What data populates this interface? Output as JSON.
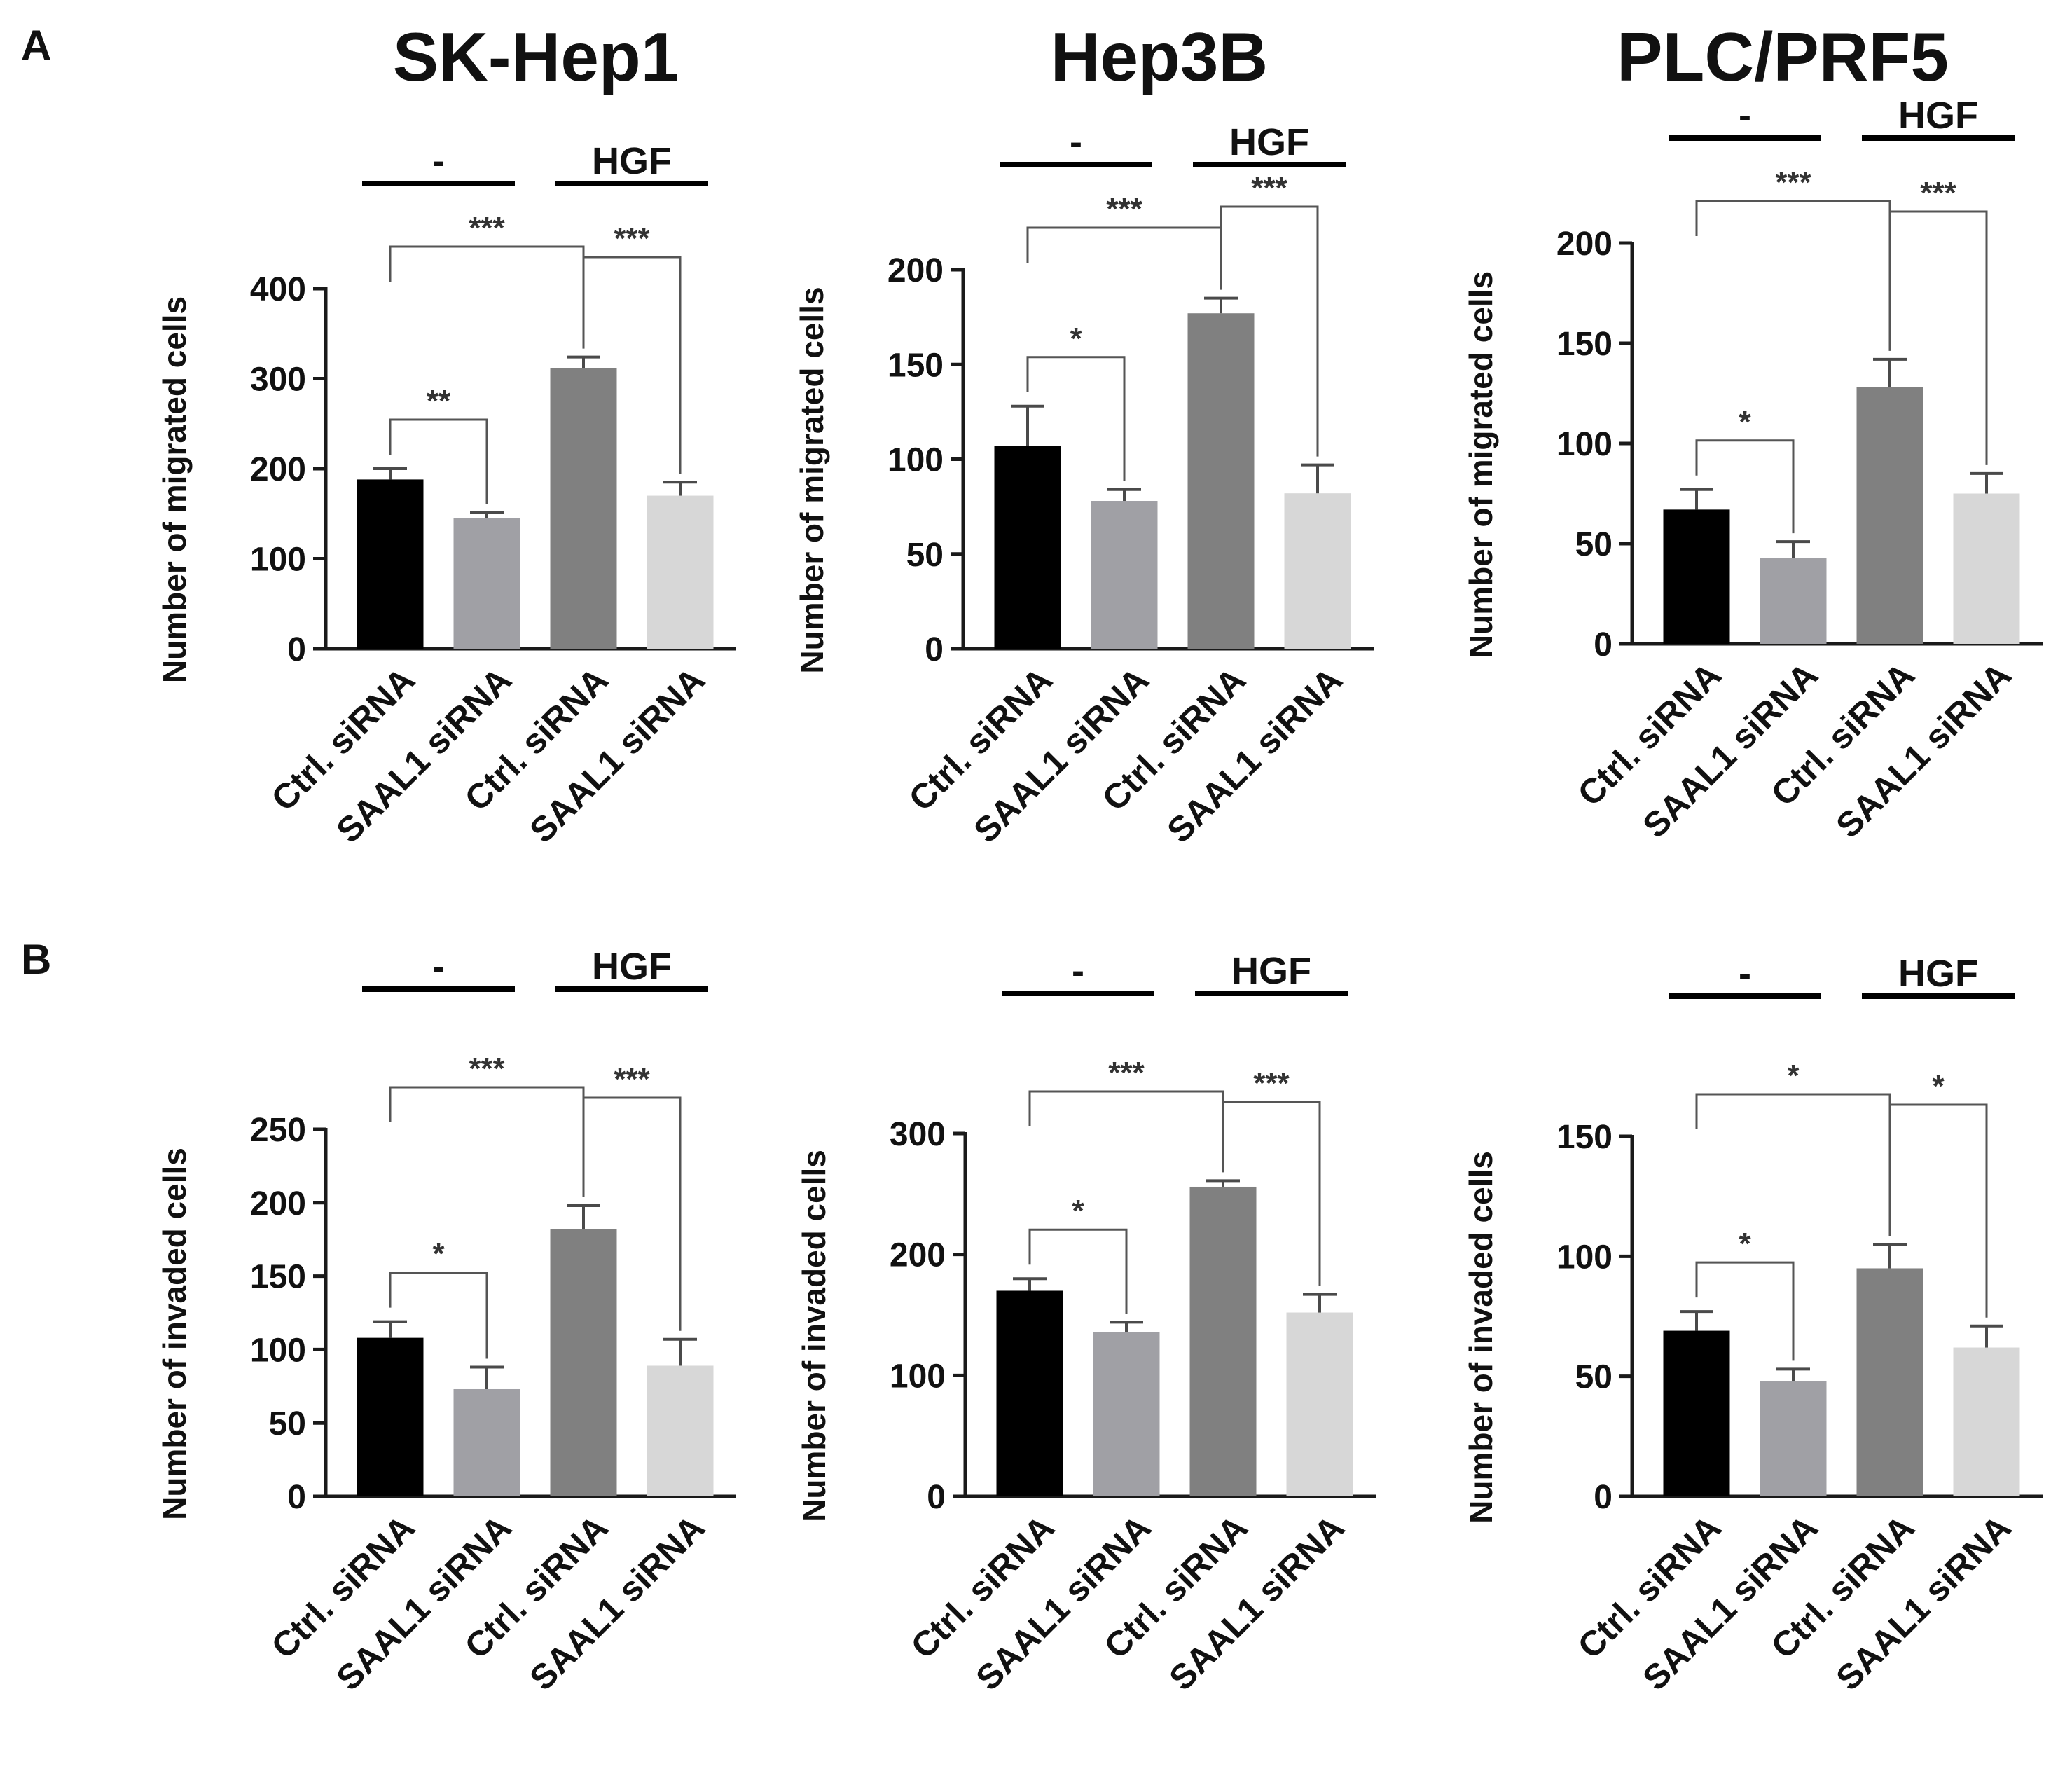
{
  "figure": {
    "panel_labels": [
      "A",
      "B"
    ],
    "column_titles": [
      "SK-Hep1",
      "Hep3B",
      "PLC/PRF5"
    ],
    "colors": {
      "bar1": "#000000",
      "bar2": "#a0a0a5",
      "bar3": "#808080",
      "bar4": "#d7d7d7",
      "axis": "#1a1a1a",
      "bracket": "#555555"
    }
  },
  "chart_data": [
    {
      "type": "bar",
      "panel": "A",
      "cell_line": "SK-Hep1",
      "ylabel": "Number of migrated cells",
      "ylim": [
        0,
        400
      ],
      "yticks": [
        0,
        100,
        200,
        300,
        400
      ],
      "categories": [
        "Ctrl. siRNA",
        "SAAL1 siRNA",
        "Ctrl. siRNA",
        "SAAL1 siRNA"
      ],
      "values": [
        188,
        145,
        312,
        170
      ],
      "errors": [
        12,
        6,
        12,
        15
      ],
      "groups": [
        {
          "label": "-",
          "start": 0,
          "end": 1
        },
        {
          "label": "HGF",
          "start": 2,
          "end": 3
        }
      ],
      "significance": [
        {
          "from": 0,
          "to": 1,
          "label": "**"
        },
        {
          "from": 0,
          "to": 2,
          "label": "***"
        },
        {
          "from": 2,
          "to": 3,
          "label": "***"
        }
      ]
    },
    {
      "type": "bar",
      "panel": "A",
      "cell_line": "Hep3B",
      "ylabel": "Number of migrated cells",
      "ylim": [
        0,
        200
      ],
      "yticks": [
        0,
        50,
        100,
        150,
        200
      ],
      "categories": [
        "Ctrl. siRNA",
        "SAAL1 siRNA",
        "Ctrl. siRNA",
        "SAAL1 siRNA"
      ],
      "values": [
        107,
        78,
        177,
        82
      ],
      "errors": [
        21,
        6,
        8,
        15
      ],
      "groups": [
        {
          "label": "-",
          "start": 0,
          "end": 1
        },
        {
          "label": "HGF",
          "start": 2,
          "end": 3
        }
      ],
      "significance": [
        {
          "from": 0,
          "to": 1,
          "label": "*"
        },
        {
          "from": 0,
          "to": 2,
          "label": "***"
        },
        {
          "from": 2,
          "to": 3,
          "label": "***"
        }
      ]
    },
    {
      "type": "bar",
      "panel": "A",
      "cell_line": "PLC/PRF5",
      "ylabel": "Number of migrated cells",
      "ylim": [
        0,
        200
      ],
      "yticks": [
        0,
        50,
        100,
        150,
        200
      ],
      "categories": [
        "Ctrl. siRNA",
        "SAAL1 siRNA",
        "Ctrl. siRNA",
        "SAAL1 siRNA"
      ],
      "values": [
        67,
        43,
        128,
        75
      ],
      "errors": [
        10,
        8,
        14,
        10
      ],
      "groups": [
        {
          "label": "-",
          "start": 0,
          "end": 1
        },
        {
          "label": "HGF",
          "start": 2,
          "end": 3
        }
      ],
      "significance": [
        {
          "from": 0,
          "to": 1,
          "label": "*"
        },
        {
          "from": 0,
          "to": 2,
          "label": "***"
        },
        {
          "from": 2,
          "to": 3,
          "label": "***"
        }
      ]
    },
    {
      "type": "bar",
      "panel": "B",
      "cell_line": "SK-Hep1",
      "ylabel": "Number of invaded cells",
      "ylim": [
        0,
        250
      ],
      "yticks": [
        0,
        50,
        100,
        150,
        200,
        250
      ],
      "categories": [
        "Ctrl. siRNA",
        "SAAL1 siRNA",
        "Ctrl. siRNA",
        "SAAL1 siRNA"
      ],
      "values": [
        108,
        73,
        182,
        89
      ],
      "errors": [
        11,
        15,
        16,
        18
      ],
      "groups": [
        {
          "label": "-",
          "start": 0,
          "end": 1
        },
        {
          "label": "HGF",
          "start": 2,
          "end": 3
        }
      ],
      "significance": [
        {
          "from": 0,
          "to": 1,
          "label": "*"
        },
        {
          "from": 0,
          "to": 2,
          "label": "***"
        },
        {
          "from": 2,
          "to": 3,
          "label": "***"
        }
      ]
    },
    {
      "type": "bar",
      "panel": "B",
      "cell_line": "Hep3B",
      "ylabel": "Number of invaded cells",
      "ylim": [
        0,
        300
      ],
      "yticks": [
        0,
        100,
        200,
        300
      ],
      "categories": [
        "Ctrl. siRNA",
        "SAAL1 siRNA",
        "Ctrl. siRNA",
        "SAAL1 siRNA"
      ],
      "values": [
        170,
        136,
        256,
        152
      ],
      "errors": [
        10,
        8,
        5,
        15
      ],
      "groups": [
        {
          "label": "-",
          "start": 0,
          "end": 1
        },
        {
          "label": "HGF",
          "start": 2,
          "end": 3
        }
      ],
      "significance": [
        {
          "from": 0,
          "to": 1,
          "label": "*"
        },
        {
          "from": 0,
          "to": 2,
          "label": "***"
        },
        {
          "from": 2,
          "to": 3,
          "label": "***"
        }
      ]
    },
    {
      "type": "bar",
      "panel": "B",
      "cell_line": "PLC/PRF5",
      "ylabel": "Number of invaded cells",
      "ylim": [
        0,
        150
      ],
      "yticks": [
        0,
        50,
        100,
        150
      ],
      "categories": [
        "Ctrl. siRNA",
        "SAAL1 siRNA",
        "Ctrl. siRNA",
        "SAAL1 siRNA"
      ],
      "values": [
        69,
        48,
        95,
        62
      ],
      "errors": [
        8,
        5,
        10,
        9
      ],
      "groups": [
        {
          "label": "-",
          "start": 0,
          "end": 1
        },
        {
          "label": "HGF",
          "start": 2,
          "end": 3
        }
      ],
      "significance": [
        {
          "from": 0,
          "to": 1,
          "label": "*"
        },
        {
          "from": 0,
          "to": 2,
          "label": "*"
        },
        {
          "from": 2,
          "to": 3,
          "label": "*"
        }
      ]
    }
  ]
}
